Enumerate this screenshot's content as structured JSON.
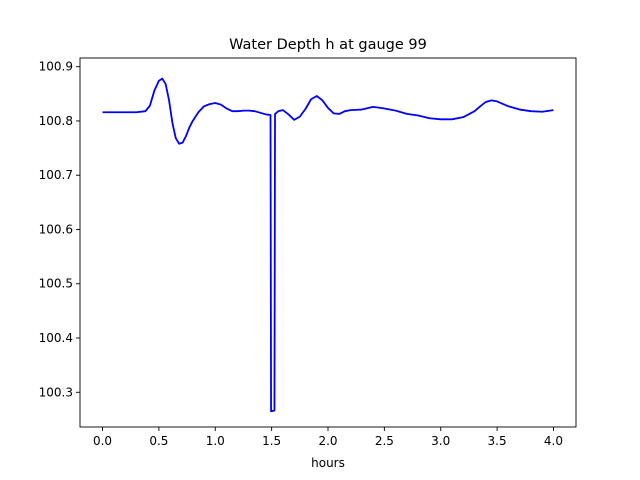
{
  "chart_data": {
    "type": "line",
    "title": "Water Depth h at gauge 99",
    "xlabel": "hours",
    "ylabel": "",
    "xlim": [
      -0.2,
      4.2
    ],
    "ylim": [
      100.236,
      100.916
    ],
    "grid": false,
    "x_ticks": [
      {
        "value": 0.0,
        "label": "0.0"
      },
      {
        "value": 0.5,
        "label": "0.5"
      },
      {
        "value": 1.0,
        "label": "1.0"
      },
      {
        "value": 1.5,
        "label": "1.5"
      },
      {
        "value": 2.0,
        "label": "2.0"
      },
      {
        "value": 2.5,
        "label": "2.5"
      },
      {
        "value": 3.0,
        "label": "3.0"
      },
      {
        "value": 3.5,
        "label": "3.5"
      },
      {
        "value": 4.0,
        "label": "4.0"
      }
    ],
    "y_ticks": [
      {
        "value": 100.3,
        "label": "100.3"
      },
      {
        "value": 100.4,
        "label": "100.4"
      },
      {
        "value": 100.5,
        "label": "100.5"
      },
      {
        "value": 100.6,
        "label": "100.6"
      },
      {
        "value": 100.7,
        "label": "100.7"
      },
      {
        "value": 100.8,
        "label": "100.8"
      },
      {
        "value": 100.9,
        "label": "100.9"
      }
    ],
    "series": [
      {
        "color": "#0000ff",
        "x": [
          0.0,
          0.1,
          0.2,
          0.3,
          0.38,
          0.42,
          0.46,
          0.5,
          0.53,
          0.56,
          0.59,
          0.62,
          0.65,
          0.68,
          0.71,
          0.74,
          0.77,
          0.8,
          0.85,
          0.9,
          0.95,
          1.0,
          1.05,
          1.1,
          1.15,
          1.2,
          1.25,
          1.3,
          1.35,
          1.4,
          1.45,
          1.49,
          1.495,
          1.52,
          1.525,
          1.53,
          1.56,
          1.6,
          1.65,
          1.7,
          1.75,
          1.8,
          1.85,
          1.9,
          1.95,
          2.0,
          2.05,
          2.1,
          2.15,
          2.2,
          2.3,
          2.4,
          2.5,
          2.6,
          2.7,
          2.8,
          2.9,
          3.0,
          3.1,
          3.2,
          3.3,
          3.35,
          3.4,
          3.45,
          3.5,
          3.6,
          3.7,
          3.8,
          3.9,
          4.0
        ],
        "y": [
          100.816,
          100.816,
          100.816,
          100.816,
          100.818,
          100.828,
          100.856,
          100.874,
          100.878,
          100.868,
          100.838,
          100.796,
          100.768,
          100.758,
          100.76,
          100.772,
          100.788,
          100.8,
          100.816,
          100.827,
          100.831,
          100.833,
          100.83,
          100.823,
          100.818,
          100.818,
          100.819,
          100.819,
          100.818,
          100.815,
          100.812,
          100.811,
          100.265,
          100.266,
          100.267,
          100.813,
          100.818,
          100.82,
          100.812,
          100.802,
          100.808,
          100.822,
          100.84,
          100.846,
          100.838,
          100.824,
          100.814,
          100.813,
          100.818,
          100.82,
          100.821,
          100.826,
          100.823,
          100.819,
          100.813,
          100.81,
          100.805,
          100.803,
          100.803,
          100.807,
          100.818,
          100.827,
          100.835,
          100.838,
          100.836,
          100.827,
          100.821,
          100.818,
          100.817,
          100.82
        ]
      }
    ]
  }
}
